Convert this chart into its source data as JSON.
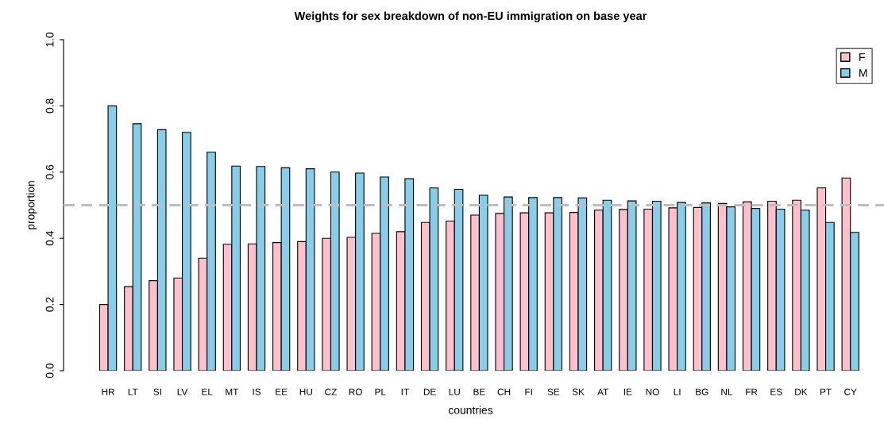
{
  "chart_data": {
    "type": "bar",
    "title": "Weights for sex breakdown of non-EU immigration on base year",
    "xlabel": "countries",
    "ylabel": "proportion",
    "categories": [
      "HR",
      "LT",
      "SI",
      "LV",
      "EL",
      "MT",
      "IS",
      "EE",
      "HU",
      "CZ",
      "RO",
      "PL",
      "IT",
      "DE",
      "LU",
      "BE",
      "CH",
      "FI",
      "SE",
      "SK",
      "AT",
      "IE",
      "NO",
      "LI",
      "BG",
      "NL",
      "FR",
      "ES",
      "DK",
      "PT",
      "CY"
    ],
    "series": [
      {
        "name": "F",
        "color": "#ffc0cb",
        "values": [
          0.2,
          0.254,
          0.272,
          0.28,
          0.34,
          0.382,
          0.383,
          0.387,
          0.39,
          0.4,
          0.403,
          0.415,
          0.42,
          0.448,
          0.452,
          0.47,
          0.475,
          0.477,
          0.477,
          0.478,
          0.485,
          0.487,
          0.488,
          0.492,
          0.493,
          0.505,
          0.51,
          0.512,
          0.515,
          0.552,
          0.582
        ]
      },
      {
        "name": "M",
        "color": "#87ceeb",
        "values": [
          0.8,
          0.746,
          0.728,
          0.72,
          0.66,
          0.618,
          0.617,
          0.613,
          0.61,
          0.6,
          0.597,
          0.585,
          0.58,
          0.552,
          0.548,
          0.53,
          0.525,
          0.523,
          0.523,
          0.522,
          0.515,
          0.513,
          0.512,
          0.508,
          0.507,
          0.495,
          0.49,
          0.488,
          0.485,
          0.448,
          0.418
        ]
      }
    ],
    "ylim": [
      0,
      1
    ],
    "yticks": [
      {
        "value": 0,
        "label": "0.0"
      },
      0.2,
      0.4,
      0.6,
      0.8,
      {
        "value": 1,
        "label": "1.0"
      }
    ],
    "ref_lines": [
      {
        "axis": "y",
        "value": 0.5,
        "color": "#bebebe",
        "line_style": "dashed"
      }
    ],
    "legend": "top right",
    "grid": false
  }
}
